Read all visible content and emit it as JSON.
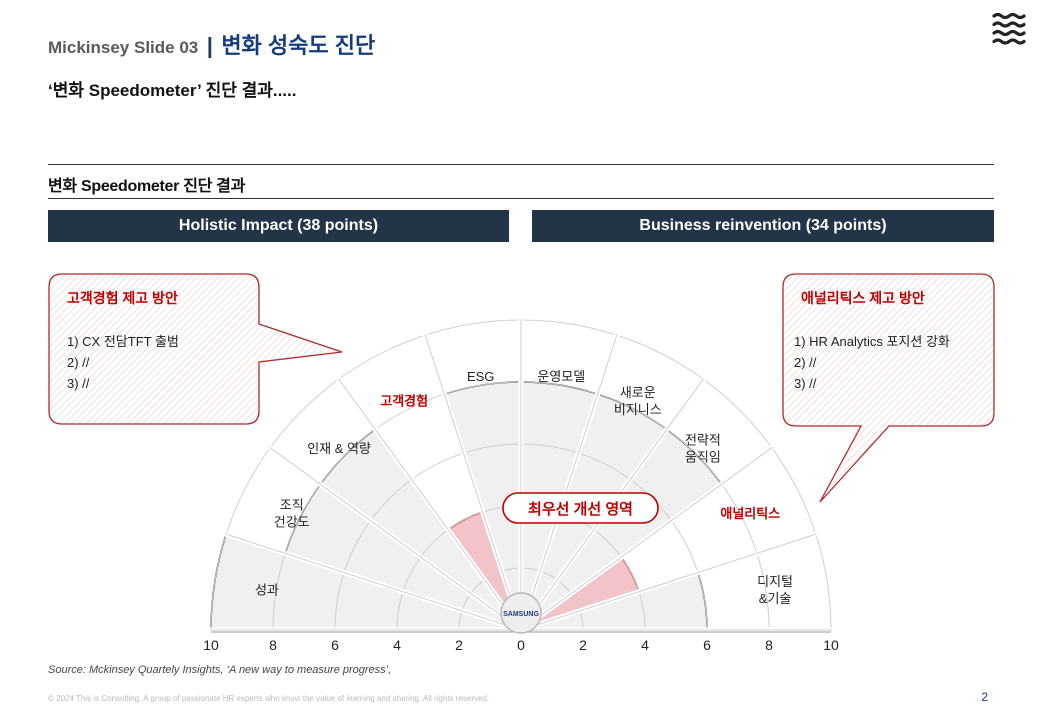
{
  "header": {
    "slide_label": "Mickinsey  Slide  03",
    "separator": "|",
    "title": "변화 성숙도 진단",
    "subtitle": "‘변화 Speedometer’ 진단 결과....."
  },
  "logo": {
    "icon": "wave-lines-icon"
  },
  "section": {
    "title": "변화 Speedometer 진단 결과",
    "left_bar": "Holistic Impact (38 points)",
    "right_bar": "Business reinvention (34 points)"
  },
  "callout_left": {
    "title": "고객경험 제고 방안",
    "items": [
      "1)  CX 전담TFT 출범",
      "2)  //",
      "3)  //"
    ]
  },
  "callout_right": {
    "title": "애널리틱스 제고 방안",
    "items": [
      "1)  HR Analytics 포지션 강화",
      "2)  //",
      "3)  //"
    ]
  },
  "center_badge": {
    "text": "SAMSUNG"
  },
  "priority_label": "최우선 개선 영역",
  "colors": {
    "navy": "#243447",
    "accent_red": "#c00000",
    "highlight_fill": "#f2c4ca",
    "segment_fill": "#f0f0f0"
  },
  "chart_data": {
    "type": "radial-bar (speedometer)",
    "scale_max": 10,
    "x_ticks": [
      "10",
      "8",
      "6",
      "4",
      "2",
      "0",
      "2",
      "4",
      "6",
      "8",
      "10"
    ],
    "left_group": "Holistic Impact (38 points)",
    "right_group": "Business reinvention (34 points)",
    "segments": [
      {
        "label": "성과",
        "side": "left",
        "value": 10,
        "highlight": false
      },
      {
        "label": "조직 건강도",
        "side": "left",
        "value": 8,
        "highlight": false
      },
      {
        "label": "인재 & 역량",
        "side": "left",
        "value": 8,
        "highlight": false
      },
      {
        "label": "고객경험",
        "side": "left",
        "value": 4,
        "highlight": true
      },
      {
        "label": "ESG",
        "side": "left",
        "value": 8,
        "highlight": false
      },
      {
        "label": "운영모델",
        "side": "right",
        "value": 8,
        "highlight": false
      },
      {
        "label": "새로운 비지니스",
        "side": "right",
        "value": 8,
        "highlight": false
      },
      {
        "label": "전략적 움직임",
        "side": "right",
        "value": 8,
        "highlight": false
      },
      {
        "label": "애널리틱스",
        "side": "right",
        "value": 4,
        "highlight": true
      },
      {
        "label": "디지털 & 기술",
        "side": "right",
        "value": 6,
        "highlight": false
      }
    ]
  },
  "source": "Source:  Mckinsey Quartely Insights, ‘A new way to measure progress’,",
  "footer": "© 2024 This is Consulting. A group of passionate HR experts who know the value of learning and sharing. All rights reserved.",
  "page_number": "2"
}
